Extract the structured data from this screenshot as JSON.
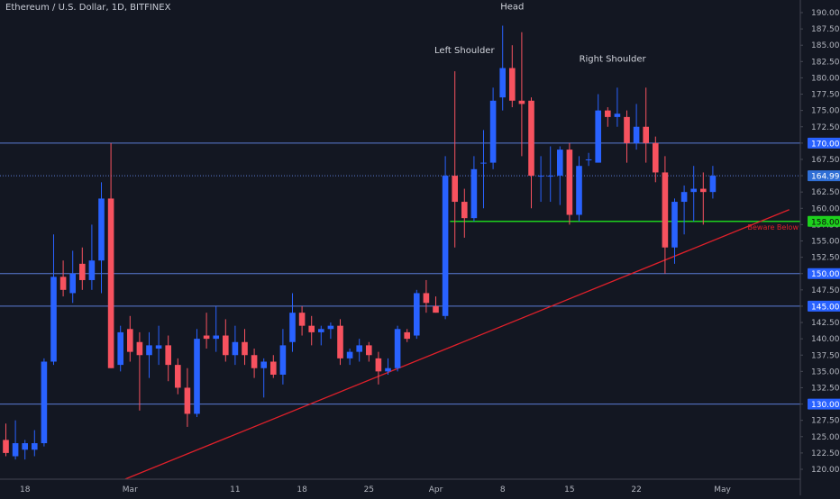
{
  "header": {
    "title": "Ethereum / U.S. Dollar, 1D, BITFINEX"
  },
  "colors": {
    "background": "#131722",
    "up": "#2962ff",
    "down": "#f7525f",
    "level_line": "#5b7bd6",
    "support_line": "#1dd11d",
    "trend_line": "#e0202a",
    "price_tag": "#2962ff",
    "current_tag": "#2f6fd6",
    "support_tag": "#1dd11d",
    "axis_text": "#b2b5be"
  },
  "chart_data": {
    "type": "candlestick",
    "title": "Ethereum / U.S. Dollar, 1D, BITFINEX",
    "ylim": [
      118.5,
      191.5
    ],
    "y_ticks": [
      "190.00",
      "187.50",
      "185.00",
      "182.50",
      "180.00",
      "177.50",
      "175.00",
      "172.50",
      "170.00",
      "167.50",
      "165.00",
      "162.50",
      "160.00",
      "157.50",
      "155.00",
      "152.50",
      "150.00",
      "147.50",
      "145.00",
      "142.50",
      "140.00",
      "137.50",
      "135.00",
      "132.50",
      "130.00",
      "127.50",
      "125.00",
      "122.50",
      "120.00"
    ],
    "x_ticks": [
      {
        "index": 2,
        "label": "18"
      },
      {
        "index": 13,
        "label": "Mar"
      },
      {
        "index": 24,
        "label": "11"
      },
      {
        "index": 31,
        "label": "18"
      },
      {
        "index": 38,
        "label": "25"
      },
      {
        "index": 45,
        "label": "Apr"
      },
      {
        "index": 52,
        "label": "8"
      },
      {
        "index": 59,
        "label": "15"
      },
      {
        "index": 66,
        "label": "22"
      },
      {
        "index": 75,
        "label": "May"
      }
    ],
    "candles": [
      {
        "o": 124.5,
        "h": 127.0,
        "l": 122.0,
        "c": 122.5
      },
      {
        "o": 122.0,
        "h": 127.5,
        "l": 121.5,
        "c": 124.0
      },
      {
        "o": 123.0,
        "h": 124.5,
        "l": 121.5,
        "c": 124.0
      },
      {
        "o": 123.0,
        "h": 126.0,
        "l": 122.0,
        "c": 124.0
      },
      {
        "o": 124.0,
        "h": 137.0,
        "l": 123.5,
        "c": 136.5
      },
      {
        "o": 136.5,
        "h": 156.0,
        "l": 136.0,
        "c": 149.5
      },
      {
        "o": 149.5,
        "h": 152.0,
        "l": 146.5,
        "c": 147.5
      },
      {
        "o": 147.0,
        "h": 153.5,
        "l": 145.5,
        "c": 150.0
      },
      {
        "o": 151.5,
        "h": 154.0,
        "l": 147.5,
        "c": 149.0
      },
      {
        "o": 149.0,
        "h": 157.5,
        "l": 147.5,
        "c": 152.0
      },
      {
        "o": 152.0,
        "h": 164.0,
        "l": 147.0,
        "c": 161.5
      },
      {
        "o": 161.5,
        "h": 170.0,
        "l": 135.5,
        "c": 135.5
      },
      {
        "o": 136.0,
        "h": 142.0,
        "l": 135.0,
        "c": 141.0
      },
      {
        "o": 141.5,
        "h": 143.5,
        "l": 136.5,
        "c": 138.0
      },
      {
        "o": 139.5,
        "h": 141.0,
        "l": 129.0,
        "c": 137.5
      },
      {
        "o": 137.5,
        "h": 141.0,
        "l": 134.0,
        "c": 139.0
      },
      {
        "o": 138.5,
        "h": 142.0,
        "l": 136.0,
        "c": 139.0
      },
      {
        "o": 139.0,
        "h": 140.5,
        "l": 133.5,
        "c": 136.0
      },
      {
        "o": 136.0,
        "h": 137.0,
        "l": 131.5,
        "c": 132.5
      },
      {
        "o": 132.5,
        "h": 135.5,
        "l": 126.5,
        "c": 128.5
      },
      {
        "o": 128.5,
        "h": 141.5,
        "l": 128.0,
        "c": 140.0
      },
      {
        "o": 140.5,
        "h": 144.0,
        "l": 138.5,
        "c": 140.0
      },
      {
        "o": 140.0,
        "h": 145.0,
        "l": 138.0,
        "c": 140.5
      },
      {
        "o": 140.5,
        "h": 143.0,
        "l": 136.5,
        "c": 137.5
      },
      {
        "o": 137.5,
        "h": 142.0,
        "l": 136.0,
        "c": 139.5
      },
      {
        "o": 139.5,
        "h": 141.5,
        "l": 136.0,
        "c": 137.5
      },
      {
        "o": 137.5,
        "h": 138.5,
        "l": 134.0,
        "c": 135.5
      },
      {
        "o": 135.5,
        "h": 137.0,
        "l": 131.0,
        "c": 136.5
      },
      {
        "o": 136.5,
        "h": 137.5,
        "l": 134.0,
        "c": 134.5
      },
      {
        "o": 134.5,
        "h": 141.5,
        "l": 133.0,
        "c": 139.0
      },
      {
        "o": 139.5,
        "h": 147.0,
        "l": 138.0,
        "c": 144.0
      },
      {
        "o": 144.0,
        "h": 145.0,
        "l": 140.5,
        "c": 142.0
      },
      {
        "o": 142.0,
        "h": 143.5,
        "l": 139.0,
        "c": 141.0
      },
      {
        "o": 141.0,
        "h": 142.0,
        "l": 139.0,
        "c": 141.5
      },
      {
        "o": 141.5,
        "h": 142.5,
        "l": 140.0,
        "c": 142.0
      },
      {
        "o": 142.0,
        "h": 143.0,
        "l": 136.0,
        "c": 137.0
      },
      {
        "o": 137.0,
        "h": 138.5,
        "l": 136.0,
        "c": 138.0
      },
      {
        "o": 138.0,
        "h": 140.0,
        "l": 136.5,
        "c": 139.0
      },
      {
        "o": 139.0,
        "h": 139.5,
        "l": 136.5,
        "c": 137.5
      },
      {
        "o": 137.0,
        "h": 138.0,
        "l": 133.0,
        "c": 135.0
      },
      {
        "o": 135.0,
        "h": 137.0,
        "l": 134.5,
        "c": 135.5
      },
      {
        "o": 135.5,
        "h": 142.0,
        "l": 135.0,
        "c": 141.5
      },
      {
        "o": 141.0,
        "h": 141.5,
        "l": 139.5,
        "c": 140.0
      },
      {
        "o": 140.5,
        "h": 147.5,
        "l": 140.0,
        "c": 147.0
      },
      {
        "o": 147.0,
        "h": 149.0,
        "l": 144.0,
        "c": 145.5
      },
      {
        "o": 145.0,
        "h": 146.5,
        "l": 144.0,
        "c": 144.0
      },
      {
        "o": 143.5,
        "h": 168.0,
        "l": 143.0,
        "c": 165.0
      },
      {
        "o": 165.0,
        "h": 181.0,
        "l": 154.0,
        "c": 161.0
      },
      {
        "o": 161.0,
        "h": 163.0,
        "l": 155.5,
        "c": 158.5
      },
      {
        "o": 158.5,
        "h": 168.0,
        "l": 158.0,
        "c": 166.0
      },
      {
        "o": 167.0,
        "h": 172.0,
        "l": 160.0,
        "c": 167.0
      },
      {
        "o": 167.0,
        "h": 178.5,
        "l": 166.0,
        "c": 176.5
      },
      {
        "o": 177.0,
        "h": 188.0,
        "l": 175.0,
        "c": 181.5
      },
      {
        "o": 181.5,
        "h": 185.0,
        "l": 175.5,
        "c": 176.5
      },
      {
        "o": 176.5,
        "h": 187.0,
        "l": 168.0,
        "c": 176.0
      },
      {
        "o": 176.5,
        "h": 177.0,
        "l": 160.0,
        "c": 165.0
      },
      {
        "o": 165.0,
        "h": 168.0,
        "l": 161.0,
        "c": 165.0
      },
      {
        "o": 165.0,
        "h": 169.5,
        "l": 161.0,
        "c": 165.0
      },
      {
        "o": 165.0,
        "h": 169.5,
        "l": 160.5,
        "c": 169.0
      },
      {
        "o": 169.0,
        "h": 170.0,
        "l": 157.5,
        "c": 159.0
      },
      {
        "o": 159.0,
        "h": 168.0,
        "l": 158.0,
        "c": 166.5
      },
      {
        "o": 167.5,
        "h": 168.5,
        "l": 166.5,
        "c": 167.5
      },
      {
        "o": 167.0,
        "h": 177.5,
        "l": 167.0,
        "c": 175.0
      },
      {
        "o": 175.0,
        "h": 175.5,
        "l": 172.5,
        "c": 174.0
      },
      {
        "o": 174.0,
        "h": 178.5,
        "l": 172.5,
        "c": 174.5
      },
      {
        "o": 174.0,
        "h": 175.0,
        "l": 167.0,
        "c": 170.0
      },
      {
        "o": 170.0,
        "h": 176.0,
        "l": 169.0,
        "c": 172.5
      },
      {
        "o": 172.5,
        "h": 178.5,
        "l": 167.0,
        "c": 170.0
      },
      {
        "o": 170.0,
        "h": 171.0,
        "l": 164.0,
        "c": 165.5
      },
      {
        "o": 165.5,
        "h": 168.0,
        "l": 150.0,
        "c": 154.0
      },
      {
        "o": 154.0,
        "h": 161.5,
        "l": 151.5,
        "c": 161.0
      },
      {
        "o": 161.0,
        "h": 163.5,
        "l": 156.0,
        "c": 162.5
      },
      {
        "o": 162.5,
        "h": 166.5,
        "l": 158.0,
        "c": 163.0
      },
      {
        "o": 163.0,
        "h": 165.5,
        "l": 157.5,
        "c": 162.5
      },
      {
        "o": 162.5,
        "h": 166.5,
        "l": 161.5,
        "c": 165.0
      }
    ],
    "horizontal_levels": [
      {
        "price": 170.0,
        "label": "170.00",
        "style": "solid"
      },
      {
        "price": 164.99,
        "label": "164.99",
        "style": "dotted",
        "current": true
      },
      {
        "price": 150.0,
        "label": "150.00",
        "style": "solid"
      },
      {
        "price": 145.0,
        "label": "145.00",
        "style": "solid"
      },
      {
        "price": 130.0,
        "label": "130.00",
        "style": "solid"
      }
    ],
    "support": {
      "price": 158.0,
      "label": "158.00",
      "from_index": 46.5,
      "note": "Beware Below"
    },
    "trendline": {
      "from": {
        "index": 12.5,
        "price": 118.5
      },
      "to": {
        "index": 82.0,
        "price": 159.8
      }
    },
    "annotations": [
      {
        "text": "Head",
        "index": 53,
        "price": 190.5
      },
      {
        "text": "Left Shoulder",
        "index": 48,
        "price": 183.8
      },
      {
        "text": "Right Shoulder",
        "index": 63.5,
        "price": 182.5
      }
    ]
  }
}
